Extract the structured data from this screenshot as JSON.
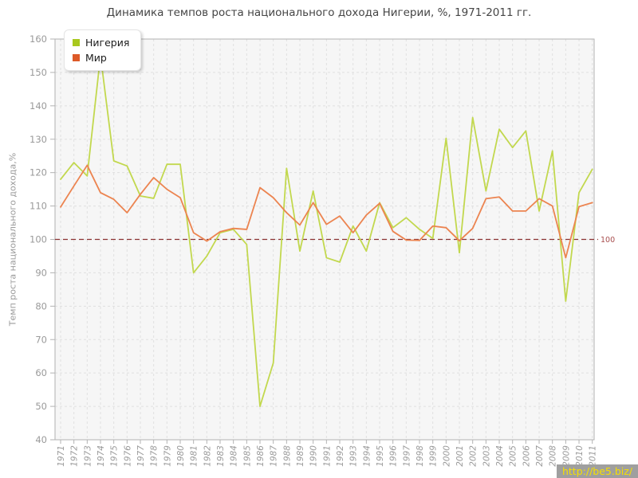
{
  "title": "Динамика темпов роста национального дохода Нигерии, %, 1971-2011 гг.",
  "watermark": "http://be5.biz/",
  "chart_data": {
    "type": "line",
    "title": "Динамика темпов роста национального дохода Нигерии, %, 1971-2011 гг.",
    "xlabel": "",
    "ylabel": "Темп роста национального дохода,%",
    "ylim": [
      40,
      160
    ],
    "y_ticks": [
      160,
      150,
      140,
      130,
      120,
      110,
      100,
      90,
      80,
      70,
      60,
      50,
      40
    ],
    "grid": true,
    "legend_position": "top-left",
    "x": [
      1971,
      1972,
      1973,
      1974,
      1975,
      1976,
      1977,
      1978,
      1979,
      1980,
      1981,
      1982,
      1983,
      1984,
      1985,
      1986,
      1987,
      1988,
      1989,
      1990,
      1991,
      1992,
      1993,
      1994,
      1995,
      1996,
      1997,
      1998,
      1999,
      2000,
      2001,
      2002,
      2003,
      2004,
      2005,
      2006,
      2007,
      2008,
      2009,
      2010,
      2011
    ],
    "series": [
      {
        "name": "Нигерия",
        "color": "#a8c81e",
        "line_color": "#c2d84e",
        "values": [
          118,
          123,
          119,
          155,
          123.5,
          122,
          113,
          112.3,
          122.5,
          122.5,
          90,
          95,
          102,
          103,
          98.5,
          50,
          63,
          121.3,
          96.5,
          114.5,
          94.5,
          93.2,
          104,
          96.5,
          111,
          103.5,
          106.5,
          103,
          100.3,
          130.3,
          96,
          136.5,
          114.5,
          133,
          127.5,
          132.5,
          108.5,
          126.5,
          81.5,
          114,
          121
        ]
      },
      {
        "name": "Мир",
        "color": "#dd5a28",
        "line_color": "#ec8450",
        "values": [
          109.7,
          116,
          122.2,
          114,
          112,
          108,
          113.5,
          118.5,
          115,
          112.5,
          102,
          99.5,
          102.3,
          103.3,
          103,
          115.5,
          112.5,
          108,
          104.3,
          111,
          104.5,
          107,
          102,
          107.3,
          110.8,
          102.4,
          99.8,
          99.7,
          104,
          103.5,
          99.6,
          103.3,
          112.2,
          112.7,
          108.5,
          108.5,
          112.2,
          110,
          94.5,
          109.8,
          111
        ]
      }
    ],
    "ref_line": {
      "value": 100,
      "label": "100",
      "color": "#8b3232",
      "label_color": "#a84e4e"
    },
    "colors": {
      "plot_bg": "#f6f6f6",
      "grid": "#e0e0e0",
      "axis": "#b2b2b2",
      "tick_label": "#9a9a9a",
      "title": "#454545",
      "watermark_bg": "#9f9f9f",
      "watermark_text": "#f6df00"
    }
  }
}
